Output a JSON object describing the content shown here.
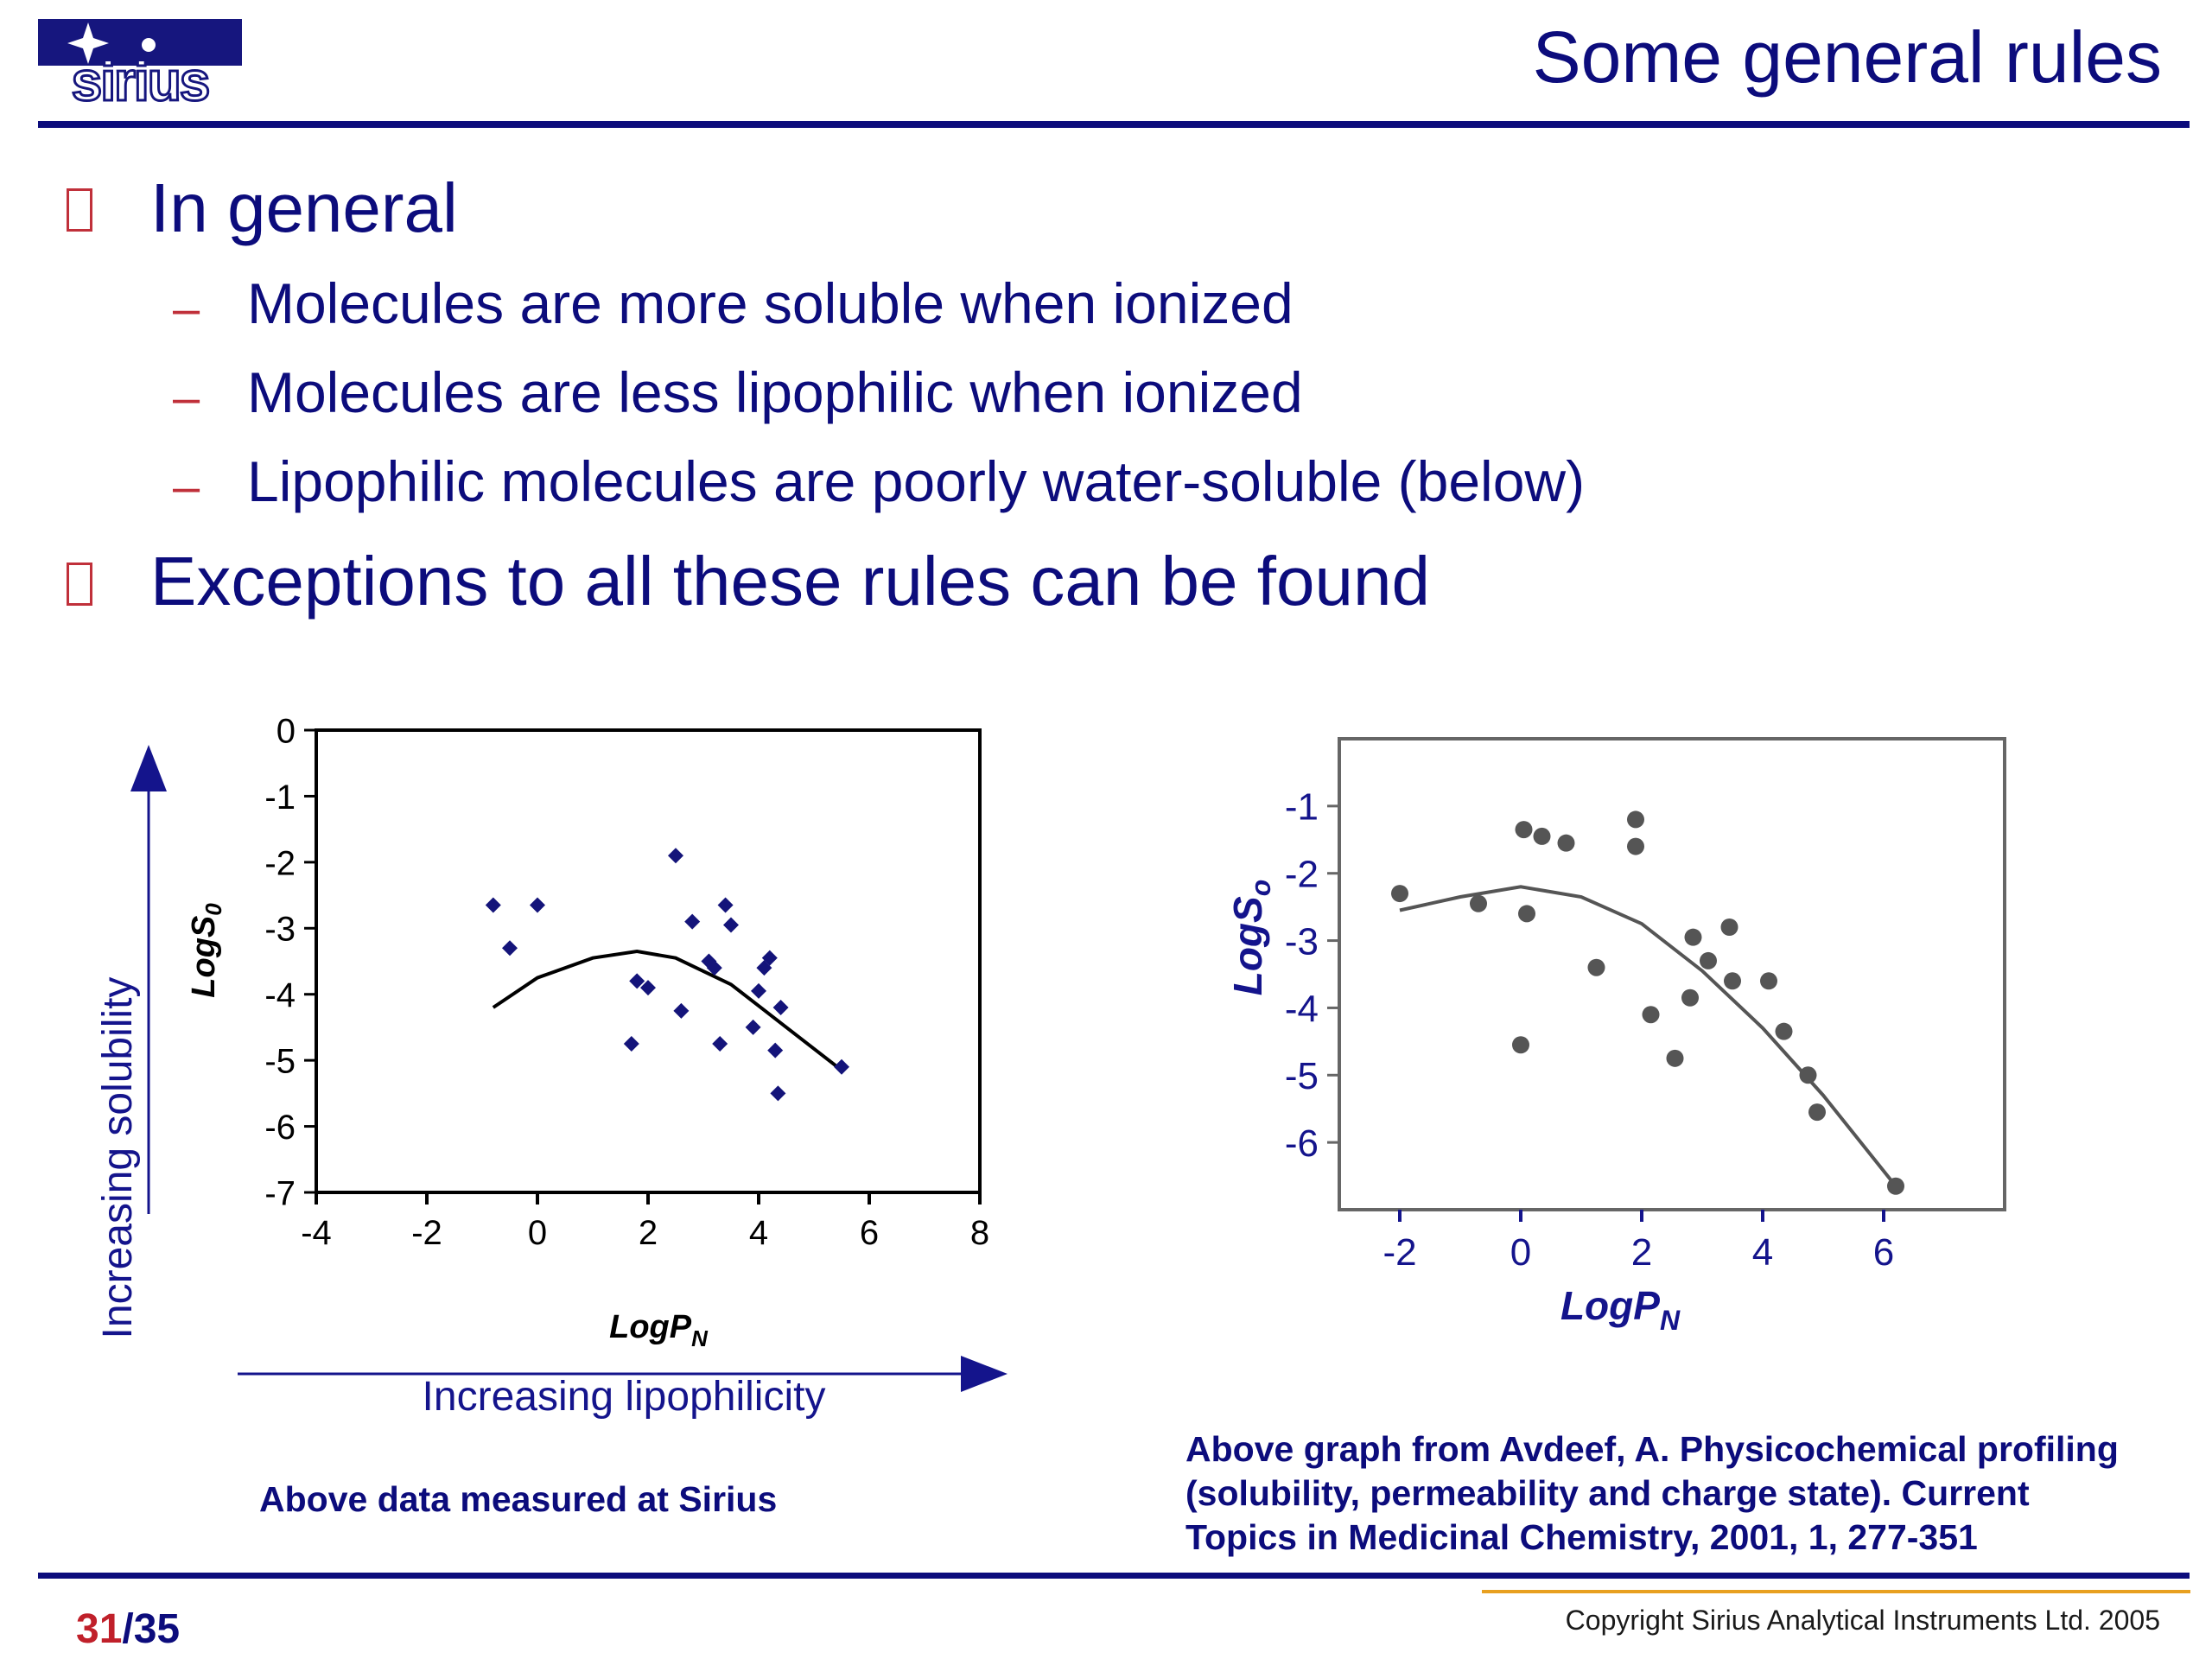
{
  "logo": {
    "text": "sirius"
  },
  "slide": {
    "title": "Some general rules"
  },
  "bullets": [
    {
      "text": "In general",
      "subitems": [
        "Molecules are more soluble when ionized",
        "Molecules are less lipophilic when ionized",
        "Lipophilic molecules are poorly water-soluble (below)"
      ]
    },
    {
      "text": "Exceptions to all these rules can be found"
    }
  ],
  "bullet_marker": "–",
  "chart_data": [
    {
      "type": "scatter",
      "xlabel": "LogP",
      "xlabel_sub": "N",
      "ylabel": "LogS",
      "ylabel_sub": "0",
      "xlim": [
        -4,
        8
      ],
      "ylim": [
        -7,
        0
      ],
      "xticks": [
        -4,
        -2,
        0,
        2,
        4,
        6,
        8
      ],
      "yticks": [
        0,
        -1,
        -2,
        -3,
        -4,
        -5,
        -6,
        -7
      ],
      "side_label_y": "Increasing solubility",
      "side_label_x": "Increasing lipophilicity",
      "marker": "diamond",
      "color": "#14147a",
      "series": [
        {
          "x": [
            -0.8,
            -0.5,
            0.0,
            1.7,
            1.8,
            2.0,
            2.5,
            2.6,
            2.8,
            3.1,
            3.2,
            3.3,
            3.4,
            3.5,
            3.9,
            4.0,
            4.1,
            4.2,
            4.3,
            4.35,
            4.4,
            5.5
          ],
          "y": [
            -2.65,
            -3.3,
            -2.65,
            -4.75,
            -3.8,
            -3.9,
            -1.9,
            -4.25,
            -2.9,
            -3.5,
            -3.6,
            -4.75,
            -2.65,
            -2.95,
            -4.5,
            -3.95,
            -3.6,
            -3.45,
            -4.85,
            -5.5,
            -4.2,
            -5.1
          ]
        }
      ],
      "fit": {
        "x": [
          -0.8,
          0,
          1,
          1.8,
          2.5,
          3.5,
          4.5,
          5.5
        ],
        "y": [
          -4.2,
          -3.75,
          -3.45,
          -3.35,
          -3.45,
          -3.85,
          -4.5,
          -5.15
        ]
      }
    },
    {
      "type": "scatter",
      "xlabel": "LogP",
      "xlabel_sub": "N",
      "ylabel": "LogS",
      "ylabel_sub": "o",
      "xlim": [
        -3,
        8
      ],
      "ylim": [
        -7,
        0
      ],
      "xticks": [
        -2,
        0,
        2,
        4,
        6
      ],
      "yticks": [
        -1,
        -2,
        -3,
        -4,
        -5,
        -6
      ],
      "marker": "circle",
      "color": "#555555",
      "series": [
        {
          "x": [
            -2.0,
            -0.7,
            0.0,
            0.05,
            0.1,
            0.35,
            0.75,
            1.25,
            1.9,
            1.9,
            2.15,
            2.55,
            2.8,
            2.85,
            3.1,
            3.45,
            3.5,
            4.1,
            4.35,
            4.75,
            4.9,
            6.2
          ],
          "y": [
            -2.3,
            -2.45,
            -4.55,
            -1.35,
            -2.6,
            -1.45,
            -1.55,
            -3.4,
            -1.2,
            -1.6,
            -4.1,
            -4.75,
            -3.85,
            -2.95,
            -3.3,
            -2.8,
            -3.6,
            -3.6,
            -4.35,
            -5.0,
            -5.55,
            -6.65
          ]
        }
      ],
      "fit": {
        "x": [
          -2.0,
          -1.0,
          0.0,
          1.0,
          2.0,
          3.0,
          4.0,
          5.0,
          6.2
        ],
        "y": [
          -2.55,
          -2.35,
          -2.2,
          -2.35,
          -2.75,
          -3.45,
          -4.3,
          -5.3,
          -6.65
        ]
      }
    }
  ],
  "captions": {
    "left": "Above data measured at Sirius",
    "right": [
      "Above graph from  Avdeef, A. Physicochemical profiling",
      "(solubility, permeability and charge state). Current",
      "Topics in Medicinal Chemistry,  2001, 1, 277-351"
    ]
  },
  "footer": {
    "page_current": "31",
    "page_separator": "/",
    "page_total": "35",
    "copyright": "Copyright Sirius Analytical Instruments Ltd. 2005"
  }
}
